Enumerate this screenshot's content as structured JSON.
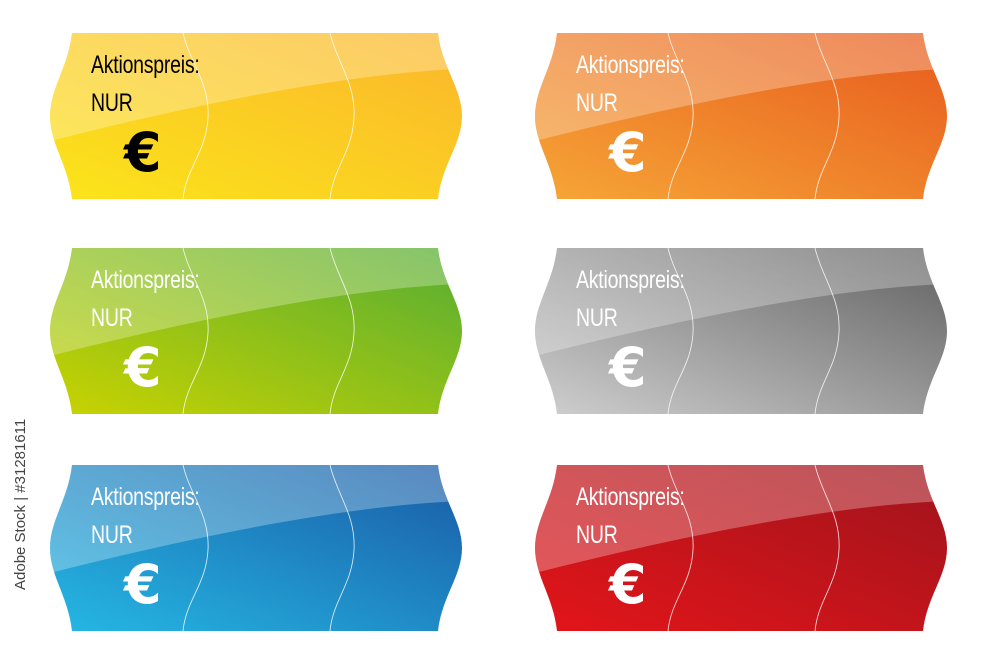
{
  "labels": [
    {
      "title": "Aktionspreis:",
      "sub": "NUR",
      "currency": "€",
      "color_light": "#fbe51a",
      "color_dark": "#fbb52c",
      "text_color": "#000000"
    },
    {
      "title": "Aktionspreis:",
      "sub": "NUR",
      "currency": "€",
      "color_light": "#f6a637",
      "color_dark": "#e75a1d",
      "text_color": "#ffffff"
    },
    {
      "title": "Aktionspreis:",
      "sub": "NUR",
      "currency": "€",
      "color_light": "#c9d300",
      "color_dark": "#55ad34",
      "text_color": "#ffffff"
    },
    {
      "title": "Aktionspreis:",
      "sub": "NUR",
      "currency": "€",
      "color_light": "#cfcfcf",
      "color_dark": "#616161",
      "text_color": "#ffffff"
    },
    {
      "title": "Aktionspreis:",
      "sub": "NUR",
      "currency": "€",
      "color_light": "#25b8e4",
      "color_dark": "#1a5aa5",
      "text_color": "#ffffff"
    },
    {
      "title": "Aktionspreis:",
      "sub": "NUR",
      "currency": "€",
      "color_light": "#e3151a",
      "color_dark": "#9f141c",
      "text_color": "#ffffff"
    }
  ],
  "watermark": "Adobe Stock | #31281611"
}
